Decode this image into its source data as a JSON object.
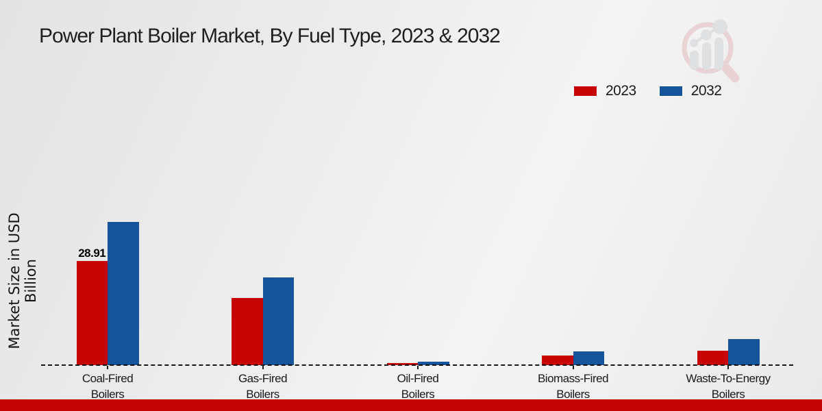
{
  "title": "Power Plant Boiler Market, By Fuel Type, 2023 & 2032",
  "ylabel": "Market Size in USD Billion",
  "legend": [
    {
      "label": "2023",
      "color": "#c70505"
    },
    {
      "label": "2032",
      "color": "#15549a"
    }
  ],
  "annotation": {
    "text": "28.91",
    "category_index": 0,
    "series_index": 0
  },
  "footer_bar_color": "#c40404",
  "watermark_icon": "magnifier-bar-chart-logo",
  "chart_data": {
    "type": "bar",
    "categories": [
      "Coal-Fired\nBoilers",
      "Gas-Fired\nBoilers",
      "Oil-Fired\nBoilers",
      "Biomass-Fired\nBoilers",
      "Waste-To-Energy\nBoilers"
    ],
    "series": [
      {
        "name": "2023",
        "color": "#c70505",
        "values": [
          28.91,
          18.6,
          0.6,
          2.7,
          4.0
        ]
      },
      {
        "name": "2032",
        "color": "#15549a",
        "values": [
          39.7,
          24.3,
          0.9,
          3.8,
          7.2
        ]
      }
    ],
    "title": "Power Plant Boiler Market, By Fuel Type, 2023 & 2032",
    "xlabel": "",
    "ylabel": "Market Size in USD Billion",
    "ylim": [
      0,
      42
    ],
    "grid": false,
    "legend_position": "top-right",
    "baseline_style": "dashed",
    "value_labels": [
      "28.91 on Coal-Fired Boilers 2023 bar"
    ]
  }
}
